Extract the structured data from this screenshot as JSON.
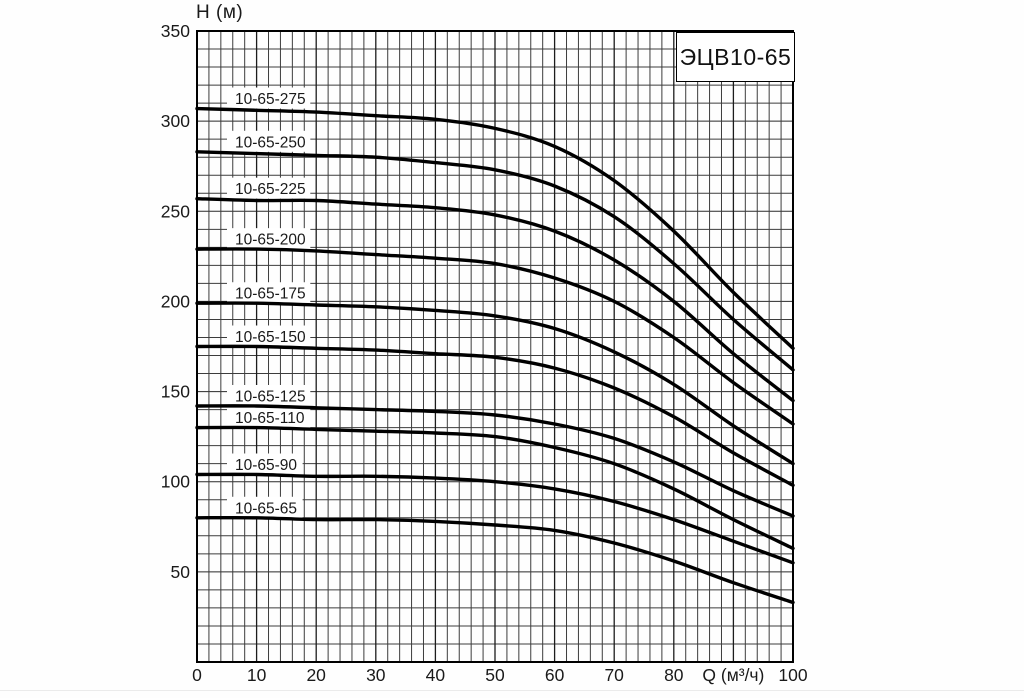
{
  "title": "ЭЦВ10-65",
  "axes": {
    "y_label": "H (м)",
    "x_label": "Q (м³/ч)",
    "y_tick_labels": [
      "350",
      "300",
      "250",
      "200",
      "150",
      "100",
      "50"
    ],
    "x_tick_labels": [
      "0",
      "10",
      "20",
      "30",
      "40",
      "50",
      "60",
      "70",
      "80",
      "Q (м³/ч)",
      "100"
    ]
  },
  "chart_data": {
    "type": "line",
    "title": "ЭЦВ10-65",
    "xlabel": "Q (м³/ч)",
    "ylabel": "H (м)",
    "xlim": [
      0,
      100
    ],
    "ylim": [
      0,
      350
    ],
    "x_grid_step": 2,
    "y_grid_step": 10,
    "x_tick_step": 10,
    "y_tick_step": 50,
    "grid": true,
    "legend_position": "inline-labels-above-curve-start",
    "x_label_position": "replaces-90-tick",
    "curve_color": "#000000",
    "grid_color": "#3c3c3c",
    "x": [
      0,
      10,
      20,
      30,
      40,
      50,
      60,
      70,
      80,
      90,
      100
    ],
    "series": [
      {
        "name": "10-65-275",
        "values": [
          307,
          306,
          305,
          303,
          301,
          296,
          286,
          267,
          239,
          205,
          174
        ]
      },
      {
        "name": "10-65-250",
        "values": [
          283,
          282,
          281,
          280,
          277,
          273,
          264,
          247,
          221,
          190,
          162
        ]
      },
      {
        "name": "10-65-225",
        "values": [
          257,
          256,
          256,
          254,
          252,
          248,
          239,
          223,
          200,
          171,
          145
        ]
      },
      {
        "name": "10-65-200",
        "values": [
          229,
          229,
          228,
          226,
          224,
          221,
          213,
          200,
          180,
          155,
          132
        ]
      },
      {
        "name": "10-65-175",
        "values": [
          199,
          199,
          198,
          197,
          195,
          192,
          185,
          172,
          154,
          131,
          110
        ]
      },
      {
        "name": "10-65-150",
        "values": [
          175,
          175,
          174,
          173,
          171,
          169,
          163,
          152,
          136,
          116,
          98
        ]
      },
      {
        "name": "10-65-125",
        "values": [
          142,
          142,
          141,
          140,
          139,
          137,
          132,
          124,
          111,
          95,
          81
        ]
      },
      {
        "name": "10-65-110",
        "values": [
          130,
          130,
          129,
          128,
          127,
          125,
          119,
          110,
          96,
          79,
          63
        ]
      },
      {
        "name": "10-65-90",
        "values": [
          104,
          104,
          103,
          103,
          102,
          100,
          96,
          89,
          79,
          67,
          55
        ]
      },
      {
        "name": "10-65-65",
        "values": [
          80,
          80,
          79,
          79,
          78,
          76,
          73,
          66,
          56,
          44,
          33
        ]
      }
    ]
  }
}
